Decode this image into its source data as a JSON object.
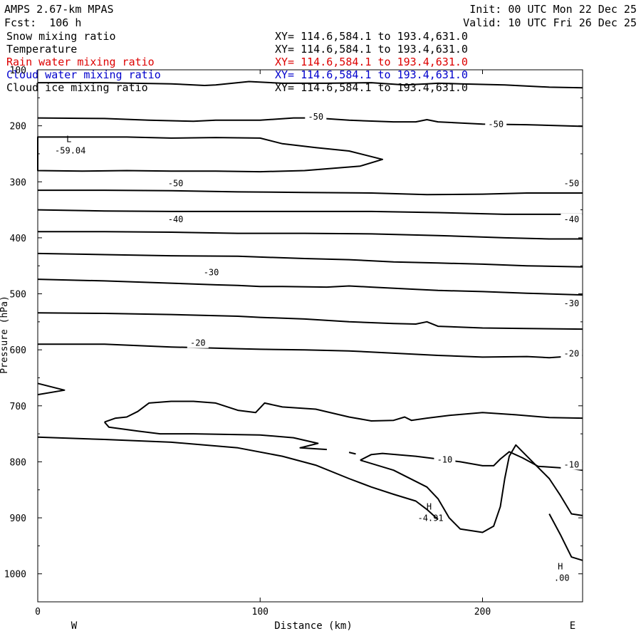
{
  "header": {
    "model": "AMPS 2.67-km MPAS",
    "forecast": "Fcst:  106 h",
    "init": "Init: 00 UTC Mon 22 Dec 25",
    "valid": "Valid: 10 UTC Fri 26 Dec 25"
  },
  "fields": [
    {
      "name": "Snow mixing ratio",
      "xy": "XY= 114.6,584.1 to 193.4,631.0",
      "color": "#000000"
    },
    {
      "name": "Temperature",
      "xy": "XY= 114.6,584.1 to 193.4,631.0",
      "color": "#000000"
    },
    {
      "name": "Rain water mixing ratio",
      "xy": "XY= 114.6,584.1 to 193.4,631.0",
      "color": "#dd0000"
    },
    {
      "name": "Cloud water mixing ratio",
      "xy": "XY= 114.6,584.1 to 193.4,631.0",
      "color": "#0000cc"
    },
    {
      "name": "Cloud ice mixing ratio",
      "xy": "XY= 114.6,584.1 to 193.4,631.0",
      "color": "#000000"
    }
  ],
  "axes": {
    "xlabel": "Distance (km)",
    "ylabel": "Pressure (hPa)",
    "west": "W",
    "east": "E"
  },
  "chart_data": {
    "type": "line",
    "x_ticks": [
      0,
      100,
      200
    ],
    "y_ticks": [
      100,
      200,
      300,
      400,
      500,
      600,
      700,
      800,
      900,
      1000
    ],
    "xlim": [
      0,
      245
    ],
    "ylim": [
      1050,
      100
    ],
    "grid": false,
    "contours": [
      {
        "level": -55,
        "points": [
          [
            0,
            123
          ],
          [
            30,
            123
          ],
          [
            60,
            125
          ],
          [
            75,
            128
          ],
          [
            80,
            127
          ],
          [
            95,
            121
          ],
          [
            110,
            124
          ],
          [
            130,
            124
          ],
          [
            150,
            123
          ],
          [
            165,
            127
          ],
          [
            175,
            125
          ],
          [
            180,
            124
          ],
          [
            190,
            125
          ],
          [
            210,
            127
          ],
          [
            230,
            131
          ],
          [
            245,
            132
          ]
        ]
      },
      {
        "level": -50,
        "points": [
          [
            0,
            186
          ],
          [
            30,
            187
          ],
          [
            50,
            190
          ],
          [
            70,
            192
          ],
          [
            80,
            190
          ],
          [
            100,
            190
          ],
          [
            115,
            186
          ],
          [
            125,
            186
          ],
          [
            140,
            190
          ],
          [
            160,
            193
          ],
          [
            170,
            193
          ],
          [
            175,
            189
          ],
          [
            180,
            193
          ],
          [
            200,
            197
          ],
          [
            220,
            198
          ],
          [
            245,
            201
          ]
        ]
      },
      {
        "level": -55,
        "closed": true,
        "points": [
          [
            0,
            220
          ],
          [
            20,
            220
          ],
          [
            40,
            220
          ],
          [
            60,
            222
          ],
          [
            80,
            221
          ],
          [
            100,
            222
          ],
          [
            110,
            232
          ],
          [
            125,
            239
          ],
          [
            140,
            245
          ],
          [
            155,
            260
          ],
          [
            145,
            272
          ],
          [
            120,
            280
          ],
          [
            100,
            282
          ],
          [
            80,
            281
          ],
          [
            60,
            281
          ],
          [
            40,
            280
          ],
          [
            20,
            281
          ],
          [
            0,
            280
          ]
        ]
      },
      {
        "level": -50,
        "points": [
          [
            0,
            315
          ],
          [
            30,
            315
          ],
          [
            60,
            316
          ],
          [
            90,
            318
          ],
          [
            120,
            319
          ],
          [
            150,
            320
          ],
          [
            175,
            323
          ],
          [
            200,
            322
          ],
          [
            220,
            320
          ],
          [
            245,
            320
          ]
        ]
      },
      {
        "level": -45,
        "points": [
          [
            0,
            350
          ],
          [
            30,
            352
          ],
          [
            60,
            353
          ],
          [
            90,
            353
          ],
          [
            120,
            353
          ],
          [
            150,
            353
          ],
          [
            180,
            355
          ],
          [
            210,
            358
          ],
          [
            245,
            358
          ]
        ]
      },
      {
        "level": -40,
        "points": [
          [
            0,
            389
          ],
          [
            30,
            389
          ],
          [
            60,
            390
          ],
          [
            90,
            392
          ],
          [
            120,
            392
          ],
          [
            150,
            393
          ],
          [
            180,
            396
          ],
          [
            210,
            400
          ],
          [
            230,
            402
          ],
          [
            245,
            402
          ]
        ]
      },
      {
        "level": -35,
        "points": [
          [
            0,
            428
          ],
          [
            30,
            430
          ],
          [
            60,
            432
          ],
          [
            90,
            433
          ],
          [
            120,
            437
          ],
          [
            140,
            439
          ],
          [
            160,
            443
          ],
          [
            180,
            445
          ],
          [
            200,
            447
          ],
          [
            220,
            450
          ],
          [
            245,
            452
          ]
        ]
      },
      {
        "level": -30,
        "points": [
          [
            0,
            474
          ],
          [
            30,
            477
          ],
          [
            60,
            481
          ],
          [
            80,
            484
          ],
          [
            90,
            485
          ],
          [
            100,
            487
          ],
          [
            110,
            487
          ],
          [
            130,
            488
          ],
          [
            140,
            486
          ],
          [
            150,
            488
          ],
          [
            170,
            492
          ],
          [
            180,
            494
          ],
          [
            200,
            496
          ],
          [
            220,
            499
          ],
          [
            245,
            502
          ]
        ]
      },
      {
        "level": -25,
        "points": [
          [
            0,
            534
          ],
          [
            30,
            535
          ],
          [
            60,
            537
          ],
          [
            90,
            540
          ],
          [
            100,
            542
          ],
          [
            120,
            545
          ],
          [
            140,
            550
          ],
          [
            160,
            553
          ],
          [
            170,
            554
          ],
          [
            175,
            550
          ],
          [
            180,
            558
          ],
          [
            200,
            561
          ],
          [
            220,
            562
          ],
          [
            245,
            563
          ]
        ]
      },
      {
        "level": -20,
        "points": [
          [
            0,
            590
          ],
          [
            30,
            590
          ],
          [
            60,
            595
          ],
          [
            90,
            598
          ],
          [
            100,
            599
          ],
          [
            120,
            600
          ],
          [
            140,
            602
          ],
          [
            160,
            606
          ],
          [
            180,
            610
          ],
          [
            200,
            613
          ],
          [
            220,
            612
          ],
          [
            230,
            614
          ],
          [
            245,
            610
          ]
        ]
      },
      {
        "level": -15,
        "points": [
          [
            0,
            660
          ],
          [
            12,
            672
          ],
          [
            0,
            680
          ]
        ]
      },
      {
        "level": -15,
        "points": [
          [
            30,
            729
          ],
          [
            35,
            722
          ],
          [
            40,
            720
          ],
          [
            45,
            710
          ],
          [
            50,
            695
          ],
          [
            60,
            692
          ],
          [
            70,
            692
          ],
          [
            80,
            695
          ],
          [
            90,
            708
          ],
          [
            98,
            712
          ],
          [
            102,
            695
          ],
          [
            110,
            702
          ],
          [
            125,
            706
          ],
          [
            140,
            720
          ],
          [
            150,
            727
          ],
          [
            160,
            726
          ],
          [
            165,
            720
          ],
          [
            168,
            726
          ],
          [
            175,
            722
          ],
          [
            185,
            717
          ],
          [
            200,
            712
          ],
          [
            215,
            716
          ],
          [
            230,
            721
          ],
          [
            245,
            722
          ]
        ]
      },
      {
        "level": -15,
        "points": [
          [
            30,
            729
          ],
          [
            32,
            738
          ],
          [
            45,
            745
          ],
          [
            55,
            750
          ],
          [
            70,
            750
          ],
          [
            100,
            752
          ],
          [
            115,
            757
          ],
          [
            126,
            767
          ],
          [
            118,
            775
          ],
          [
            130,
            778
          ]
        ]
      },
      {
        "level": -10,
        "points": [
          [
            0,
            756
          ],
          [
            30,
            760
          ],
          [
            60,
            765
          ],
          [
            90,
            775
          ],
          [
            110,
            790
          ],
          [
            125,
            806
          ],
          [
            140,
            830
          ],
          [
            150,
            845
          ],
          [
            160,
            858
          ],
          [
            170,
            870
          ],
          [
            175,
            885
          ],
          [
            180,
            903
          ]
        ]
      },
      {
        "level": -10,
        "points": [
          [
            140,
            783
          ],
          [
            143,
            786
          ]
        ]
      },
      {
        "level": -10,
        "points": [
          [
            145,
            797
          ],
          [
            150,
            787
          ],
          [
            155,
            785
          ],
          [
            170,
            790
          ],
          [
            190,
            800
          ],
          [
            200,
            807
          ],
          [
            205,
            807
          ],
          [
            208,
            795
          ],
          [
            212,
            782
          ],
          [
            218,
            793
          ],
          [
            225,
            808
          ],
          [
            240,
            812
          ],
          [
            245,
            815
          ]
        ]
      },
      {
        "level": -10,
        "points": [
          [
            145,
            797
          ],
          [
            160,
            815
          ],
          [
            175,
            845
          ],
          [
            180,
            866
          ],
          [
            185,
            900
          ],
          [
            190,
            920
          ],
          [
            200,
            926
          ],
          [
            205,
            915
          ],
          [
            208,
            880
          ],
          [
            210,
            830
          ],
          [
            212,
            790
          ],
          [
            215,
            770
          ],
          [
            220,
            790
          ],
          [
            230,
            830
          ],
          [
            235,
            860
          ],
          [
            240,
            893
          ],
          [
            245,
            896
          ]
        ]
      },
      {
        "level": -5,
        "points": [
          [
            230,
            893
          ],
          [
            235,
            930
          ],
          [
            240,
            970
          ],
          [
            245,
            976
          ]
        ]
      }
    ],
    "labels": [
      {
        "text": "-50",
        "x": 125,
        "y": 184
      },
      {
        "text": "-50",
        "x": 206,
        "y": 197
      },
      {
        "text": "-50",
        "x": 62,
        "y": 303
      },
      {
        "text": "-50",
        "x": 240,
        "y": 303
      },
      {
        "text": "-40",
        "x": 62,
        "y": 367
      },
      {
        "text": "-40",
        "x": 240,
        "y": 367
      },
      {
        "text": "-30",
        "x": 78,
        "y": 462
      },
      {
        "text": "-30",
        "x": 240,
        "y": 517
      },
      {
        "text": "-20",
        "x": 72,
        "y": 588
      },
      {
        "text": "-20",
        "x": 240,
        "y": 607
      },
      {
        "text": "-10",
        "x": 183,
        "y": 796
      },
      {
        "text": "-10",
        "x": 240,
        "y": 805
      }
    ],
    "extrema": [
      {
        "type": "L",
        "value": "-59.04",
        "x": 14,
        "y": 237
      },
      {
        "type": "H",
        "value": "-4.91",
        "x": 176,
        "y": 893
      },
      {
        "type": "H",
        "value": ".00",
        "x": 235,
        "y": 1000
      }
    ]
  }
}
